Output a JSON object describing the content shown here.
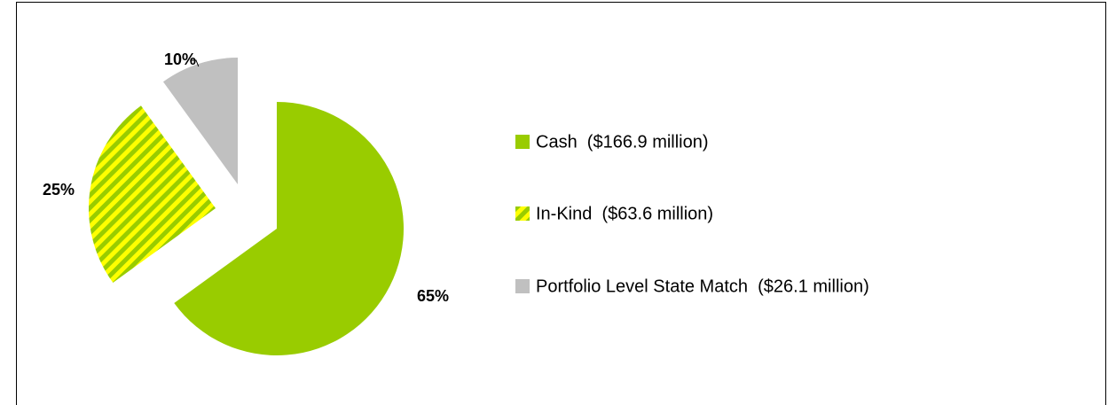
{
  "chart_data": {
    "type": "pie",
    "categories": [
      "Cash  ($166.9 million)",
      "In-Kind  ($63.6 million)",
      "Portfolio Level State Match  ($26.1 million)"
    ],
    "values": [
      65,
      25,
      10
    ],
    "value_labels": [
      "65%",
      "25%",
      "10%"
    ],
    "colors": [
      "#99cc00",
      "#99cc00",
      "#c0c0c0"
    ],
    "hatch": [
      null,
      "#ffff00",
      null
    ],
    "legend": "right"
  }
}
